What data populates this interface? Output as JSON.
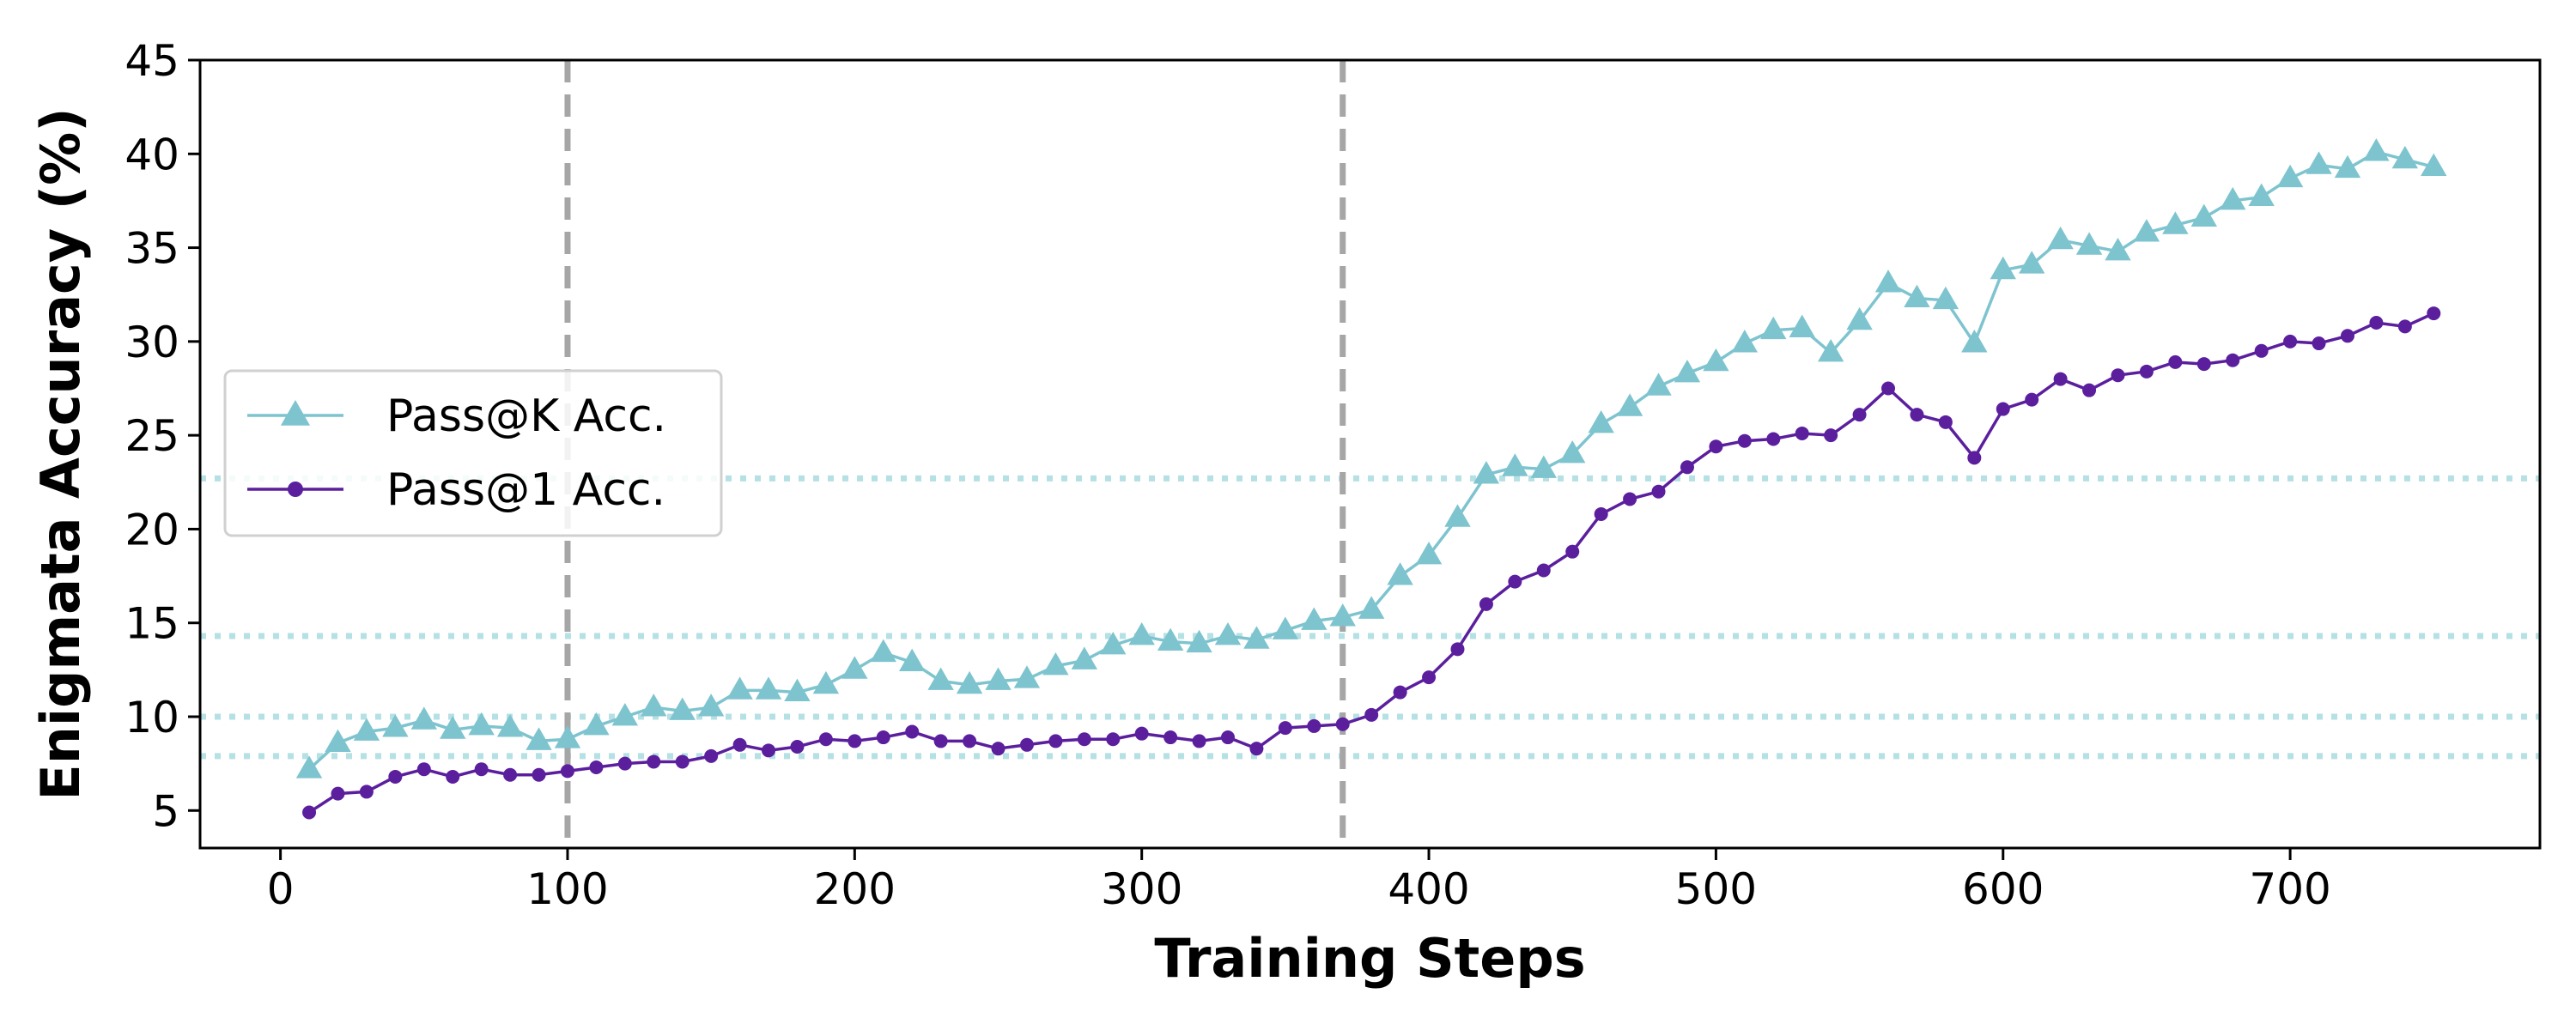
{
  "chart_data": {
    "type": "line",
    "title": "",
    "xlabel": "Training Steps",
    "ylabel": "Enigmata Accuracy (%)",
    "xlim": [
      -28,
      787
    ],
    "ylim": [
      3,
      45
    ],
    "xticks": [
      0,
      100,
      200,
      300,
      400,
      500,
      600,
      700
    ],
    "yticks": [
      5,
      10,
      15,
      20,
      25,
      30,
      35,
      40,
      45
    ],
    "grid": false,
    "legend_position": "center-left",
    "x": [
      10,
      20,
      30,
      40,
      50,
      60,
      70,
      80,
      90,
      100,
      110,
      120,
      130,
      140,
      150,
      160,
      170,
      180,
      190,
      200,
      210,
      220,
      230,
      240,
      250,
      260,
      270,
      280,
      290,
      300,
      310,
      320,
      330,
      340,
      350,
      360,
      370,
      380,
      390,
      400,
      410,
      420,
      430,
      440,
      450,
      460,
      470,
      480,
      490,
      500,
      510,
      520,
      530,
      540,
      550,
      560,
      570,
      580,
      590,
      600,
      610,
      620,
      630,
      640,
      650,
      660,
      670,
      680,
      690,
      700,
      710,
      720,
      730,
      740,
      750
    ],
    "series": [
      {
        "name": "Pass@K Acc.",
        "color": "#7ec4cf",
        "marker": "triangle",
        "values": [
          7.2,
          8.6,
          9.2,
          9.4,
          9.8,
          9.3,
          9.5,
          9.4,
          8.7,
          8.8,
          9.5,
          10.0,
          10.5,
          10.3,
          10.5,
          11.4,
          11.4,
          11.3,
          11.7,
          12.5,
          13.4,
          12.9,
          11.9,
          11.7,
          11.9,
          12.0,
          12.7,
          13.0,
          13.8,
          14.3,
          14.0,
          13.9,
          14.3,
          14.1,
          14.6,
          15.1,
          15.3,
          15.7,
          17.5,
          18.6,
          20.6,
          22.9,
          23.3,
          23.2,
          24.0,
          25.6,
          26.5,
          27.6,
          28.3,
          28.9,
          29.9,
          30.6,
          30.7,
          29.4,
          31.1,
          33.1,
          32.3,
          32.2,
          29.9,
          33.8,
          34.1,
          35.4,
          35.1,
          34.8,
          35.8,
          36.2,
          36.6,
          37.5,
          37.7,
          38.7,
          39.4,
          39.2,
          40.1,
          39.7,
          39.3
        ]
      },
      {
        "name": "Pass@1 Acc.",
        "color": "#5b1f9e",
        "marker": "circle",
        "values": [
          4.9,
          5.9,
          6.0,
          6.8,
          7.2,
          6.8,
          7.2,
          6.9,
          6.9,
          7.1,
          7.3,
          7.5,
          7.6,
          7.6,
          7.9,
          8.5,
          8.2,
          8.4,
          8.8,
          8.7,
          8.9,
          9.2,
          8.7,
          8.7,
          8.3,
          8.5,
          8.7,
          8.8,
          8.8,
          9.1,
          8.9,
          8.7,
          8.9,
          8.3,
          9.4,
          9.5,
          9.6,
          10.1,
          11.3,
          12.1,
          13.6,
          16.0,
          17.2,
          17.8,
          18.8,
          20.8,
          21.6,
          22.0,
          23.3,
          24.4,
          24.7,
          24.8,
          25.1,
          25.0,
          26.1,
          27.5,
          26.1,
          25.7,
          23.8,
          26.4,
          26.9,
          28.0,
          27.4,
          28.2,
          28.4,
          28.9,
          28.8,
          29.0,
          29.5,
          30.0,
          29.9,
          30.3,
          31.0,
          30.8,
          31.5
        ]
      }
    ],
    "vlines": [
      {
        "x": 100,
        "color": "#a6a6a6",
        "style": "dashed"
      },
      {
        "x": 370,
        "color": "#a6a6a6",
        "style": "dashed"
      }
    ],
    "hlines": [
      {
        "y": 7.9,
        "color": "#b5e0e4",
        "style": "dotted"
      },
      {
        "y": 10.0,
        "color": "#b5e0e4",
        "style": "dotted"
      },
      {
        "y": 14.3,
        "color": "#b5e0e4",
        "style": "dotted"
      },
      {
        "y": 22.7,
        "color": "#b5e0e4",
        "style": "dotted"
      }
    ]
  }
}
